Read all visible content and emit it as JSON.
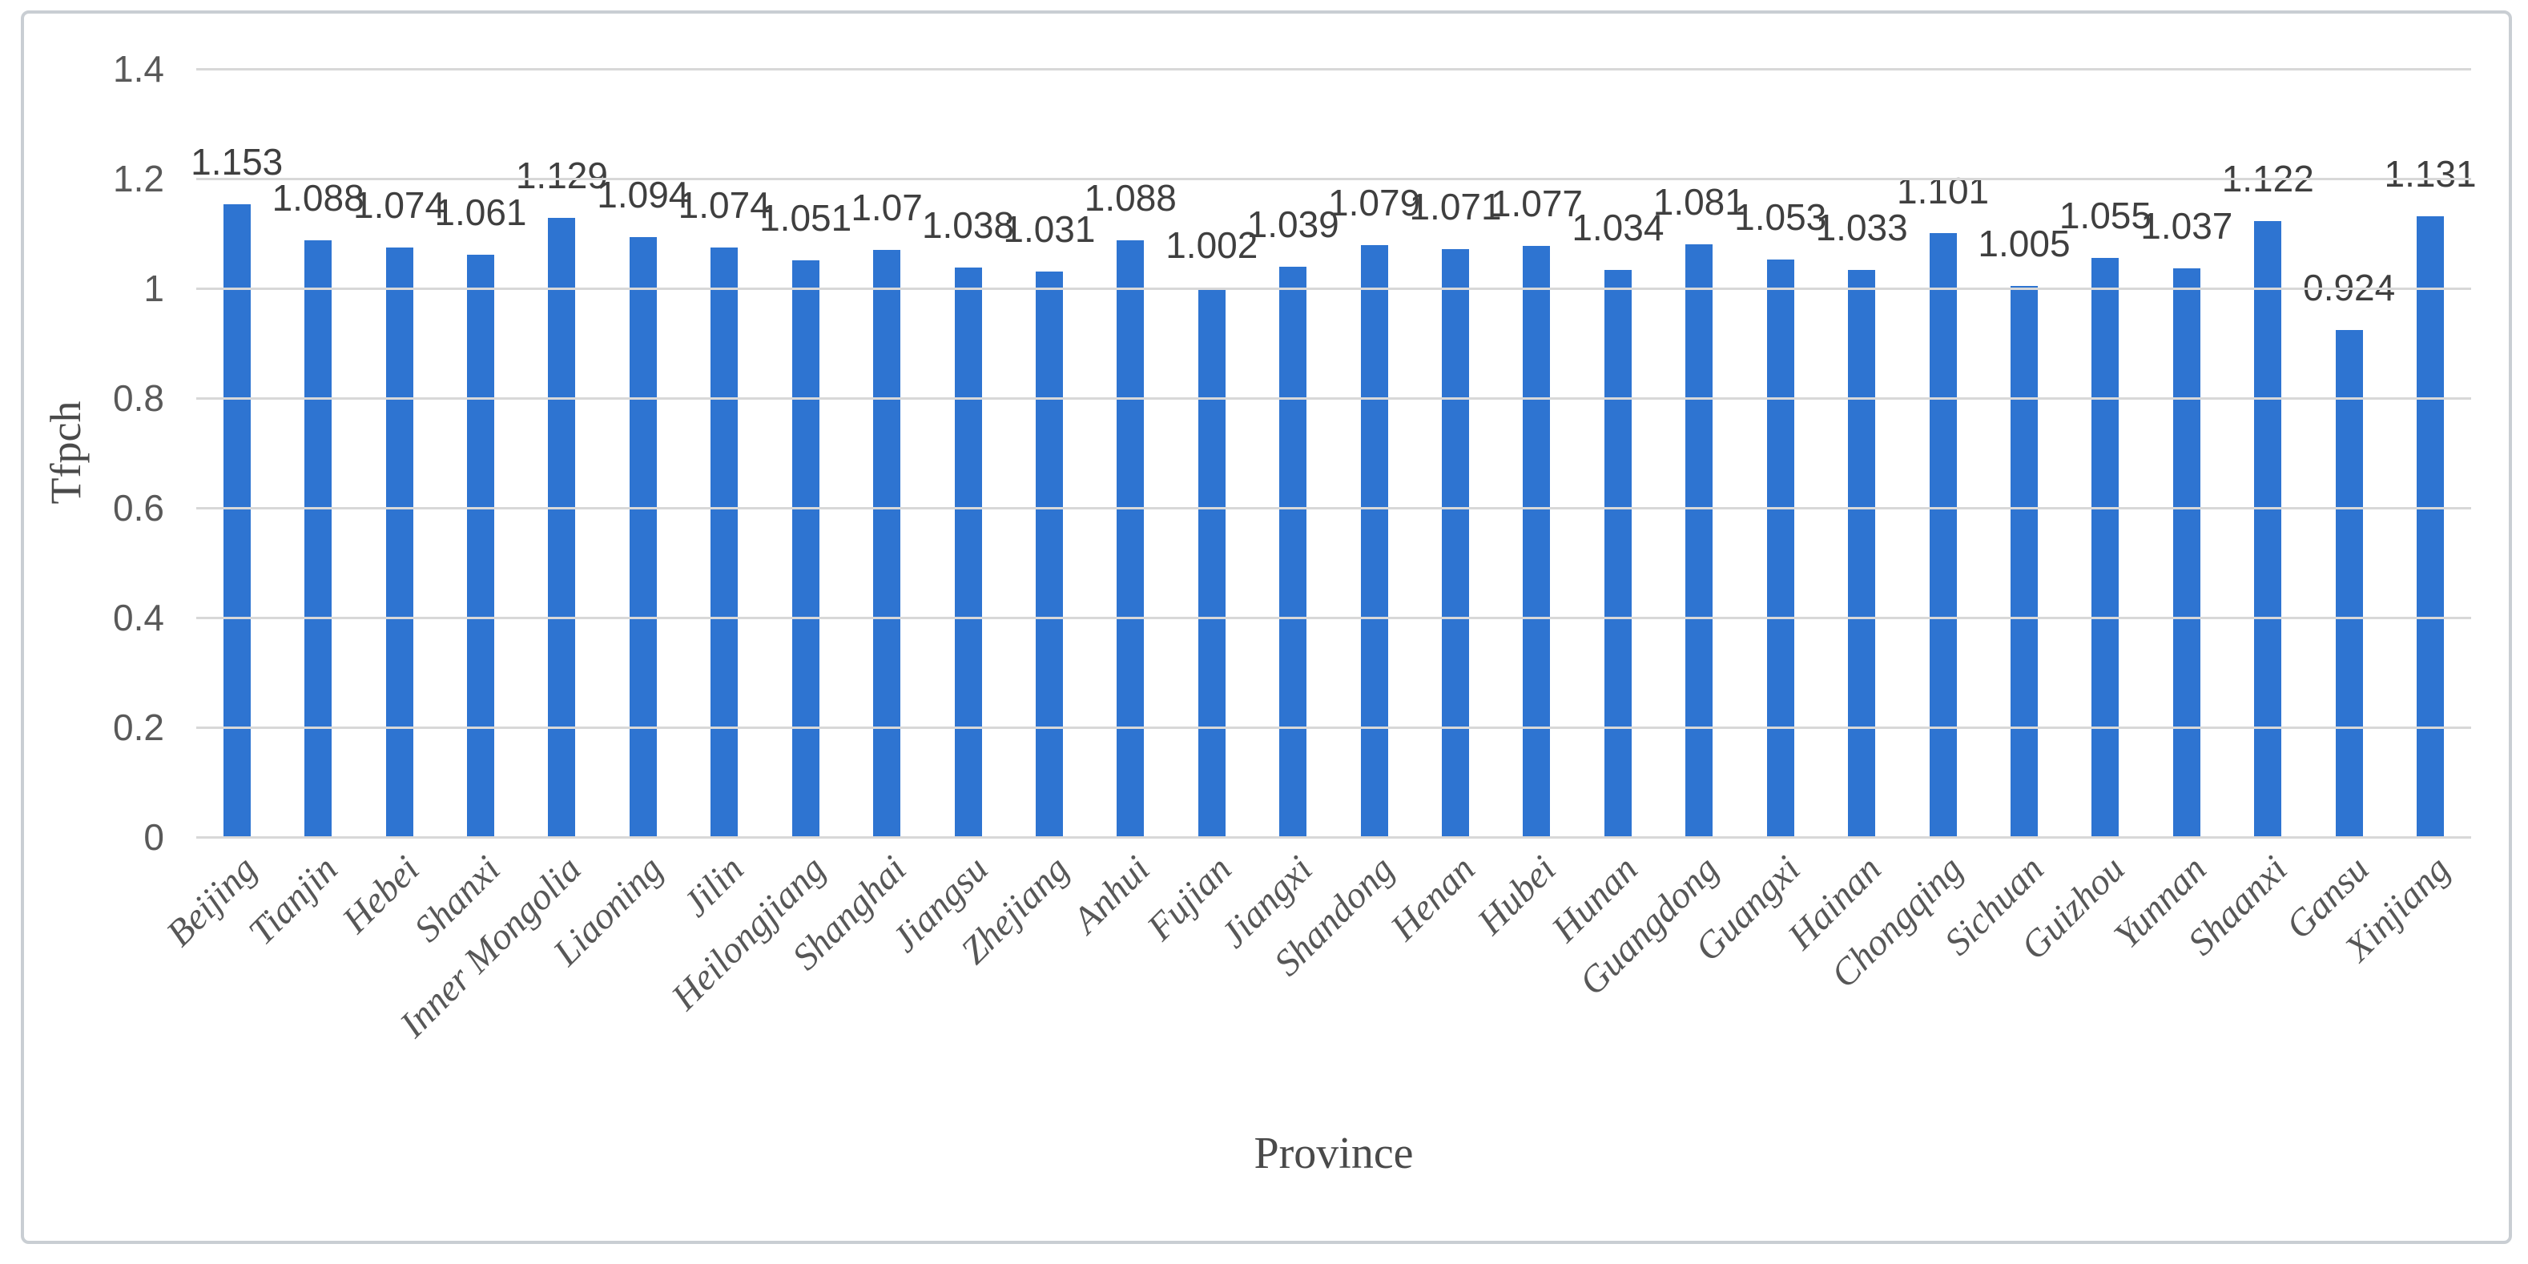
{
  "chart_data": {
    "type": "bar",
    "title": "",
    "xlabel": "Province",
    "ylabel": "Tfpch",
    "ylim": [
      0,
      1.4
    ],
    "yticks": [
      0,
      0.2,
      0.4,
      0.6,
      0.8,
      1,
      1.2,
      1.4
    ],
    "ytick_labels": [
      "0",
      "0.2",
      "0.4",
      "0.6",
      "0.8",
      "1",
      "1.2",
      "1.4"
    ],
    "grid": true,
    "legend": "none",
    "bar_color": "#2E74D1",
    "categories": [
      "Beijing",
      "Tianjin",
      "Hebei",
      "Shanxi",
      "Inner Mongolia",
      "Liaoning",
      "Jilin",
      "Heilongjiang",
      "Shanghai",
      "Jiangsu",
      "Zhejiang",
      "Anhui",
      "Fujian",
      "Jiangxi",
      "Shandong",
      "Henan",
      "Hubei",
      "Hunan",
      "Guangdong",
      "Guangxi",
      "Hainan",
      "Chongqing",
      "Sichuan",
      "Guizhou",
      "Yunnan",
      "Shaanxi",
      "Gansu",
      "Xinjiang"
    ],
    "values": [
      1.153,
      1.088,
      1.074,
      1.061,
      1.129,
      1.094,
      1.074,
      1.051,
      1.07,
      1.038,
      1.031,
      1.088,
      1.002,
      1.039,
      1.079,
      1.071,
      1.077,
      1.034,
      1.081,
      1.053,
      1.033,
      1.101,
      1.005,
      1.055,
      1.037,
      1.122,
      0.924,
      1.131
    ],
    "value_labels": [
      "1.153",
      "1.088",
      "1.074",
      "1.061",
      "1.129",
      "1.094",
      "1.074",
      "1.051",
      "1.07",
      "1.038",
      "1.031",
      "1.088",
      "1.002",
      "1.039",
      "1.079",
      "1.071",
      "1.077",
      "1.034",
      "1.081",
      "1.053",
      "1.033",
      "1.101",
      "1.005",
      "1.055",
      "1.037",
      "1.122",
      "0.924",
      "1.131"
    ]
  },
  "colors": {
    "bar": "#2E74D1",
    "gridline": "#D8D8D8",
    "tick_text": "#595959",
    "data_label_text": "#3F3F3F",
    "axis_title_text": "#4A4A4A",
    "figure_border": "#C9CED3",
    "background": "#FFFFFF"
  }
}
